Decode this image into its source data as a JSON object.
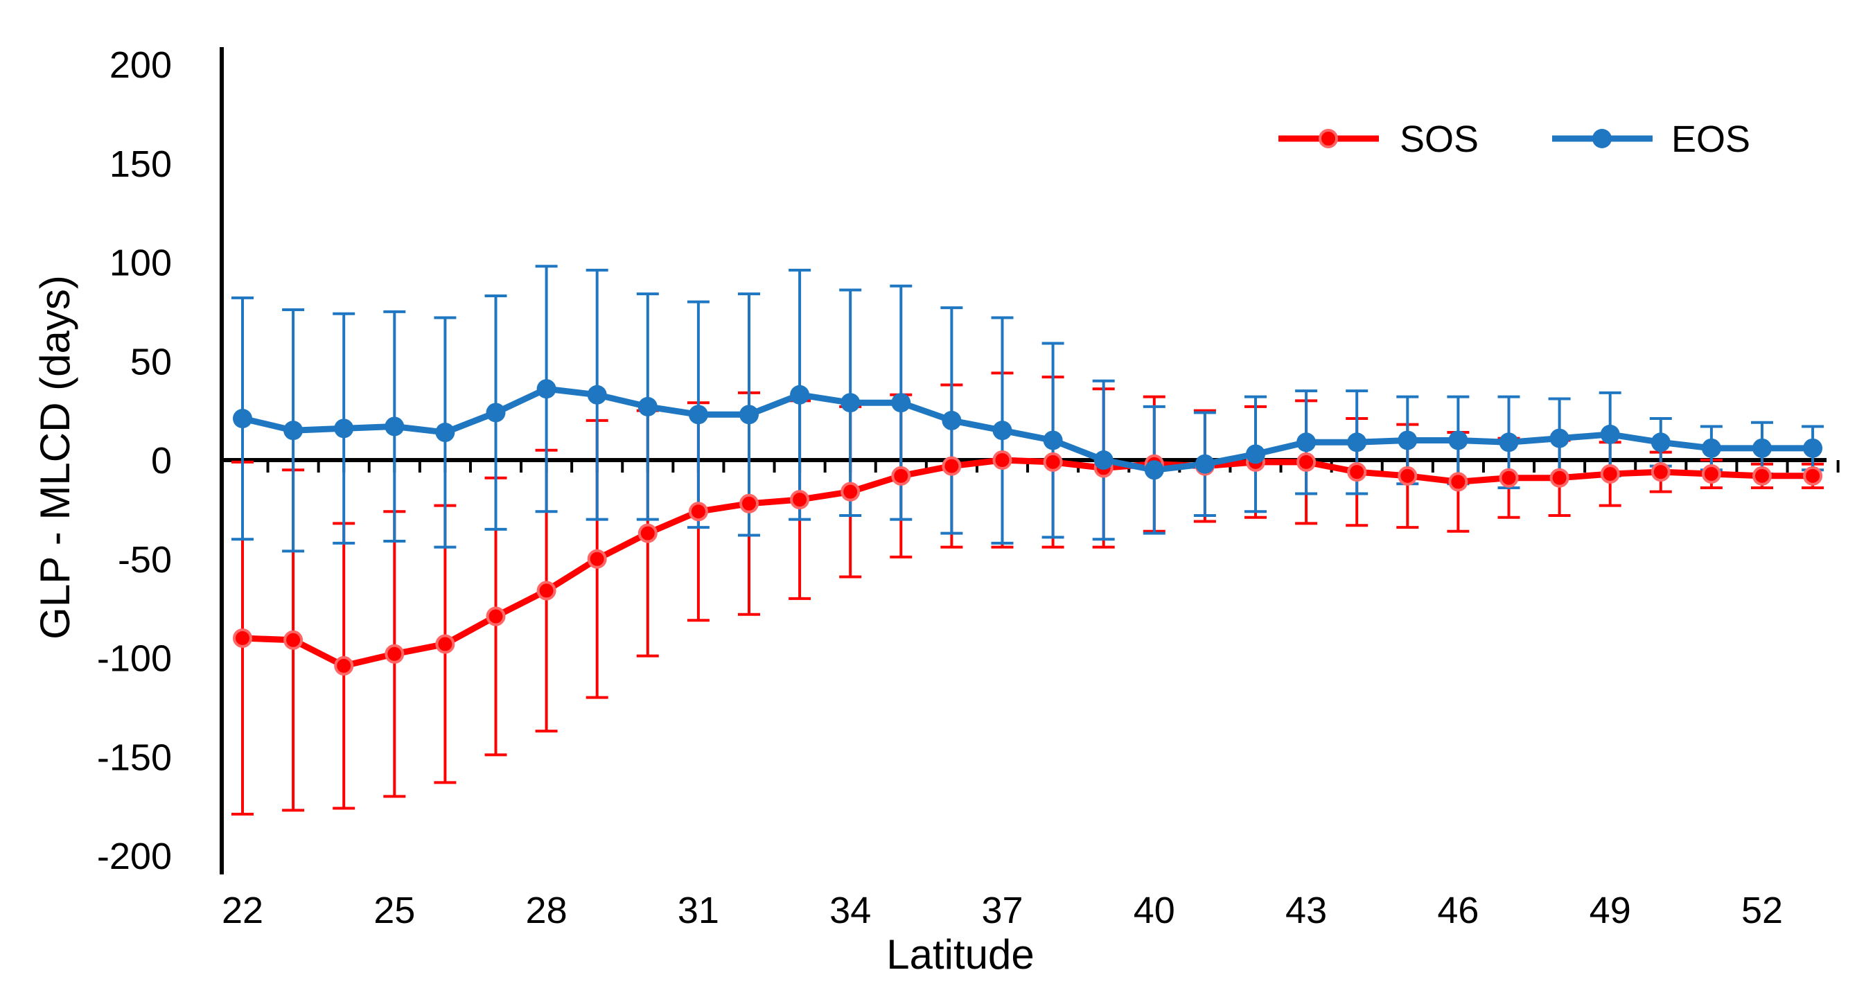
{
  "chart_data": {
    "type": "line",
    "title": "",
    "xlabel": "Latitude",
    "ylabel": "GLP - MLCD (days)",
    "xlim": [
      22,
      53
    ],
    "ylim": [
      -200,
      200
    ],
    "x_tick_values": [
      22,
      25,
      28,
      31,
      34,
      37,
      40,
      43,
      46,
      49,
      52
    ],
    "x_tick_labels": [
      "22",
      "25",
      "28",
      "31",
      "34",
      "37",
      "40",
      "43",
      "46",
      "49",
      "52"
    ],
    "y_tick_values": [
      200,
      150,
      100,
      50,
      0,
      -50,
      -100,
      -150,
      -200
    ],
    "y_tick_labels": [
      "200",
      "150",
      "100",
      "50",
      "0",
      "-50",
      "-100",
      "-150",
      "-200"
    ],
    "legend_position": "top-right",
    "x": [
      22,
      23,
      24,
      25,
      26,
      27,
      28,
      29,
      30,
      31,
      32,
      33,
      34,
      35,
      36,
      37,
      38,
      39,
      40,
      41,
      42,
      43,
      44,
      45,
      46,
      47,
      48,
      49,
      50,
      51,
      52,
      53
    ],
    "series": [
      {
        "name": "SOS",
        "color": "#ff0000",
        "values": [
          -90,
          -91,
          -104,
          -98,
          -93,
          -79,
          -66,
          -50,
          -37,
          -26,
          -22,
          -20,
          -16,
          -8,
          -3,
          0,
          -1,
          -4,
          -2,
          -3,
          -1,
          -1,
          -6,
          -8,
          -11,
          -9,
          -9,
          -7,
          -6,
          -7,
          -8,
          -8
        ],
        "errors": [
          89,
          86,
          72,
          72,
          70,
          70,
          71,
          70,
          62,
          55,
          56,
          50,
          43,
          41,
          41,
          44,
          43,
          40,
          34,
          28,
          28,
          31,
          27,
          26,
          25,
          20,
          19,
          16,
          10,
          7,
          6,
          6
        ]
      },
      {
        "name": "EOS",
        "color": "#1f77c2",
        "values": [
          21,
          15,
          16,
          17,
          14,
          24,
          36,
          33,
          27,
          23,
          23,
          33,
          29,
          29,
          20,
          15,
          10,
          0,
          -5,
          -2,
          3,
          9,
          9,
          10,
          10,
          9,
          11,
          13,
          9,
          6,
          6,
          6
        ],
        "errors": [
          61,
          61,
          58,
          58,
          58,
          59,
          62,
          63,
          57,
          57,
          61,
          63,
          57,
          59,
          57,
          57,
          49,
          40,
          32,
          26,
          29,
          26,
          26,
          22,
          22,
          23,
          20,
          21,
          12,
          11,
          13,
          11
        ]
      }
    ]
  }
}
